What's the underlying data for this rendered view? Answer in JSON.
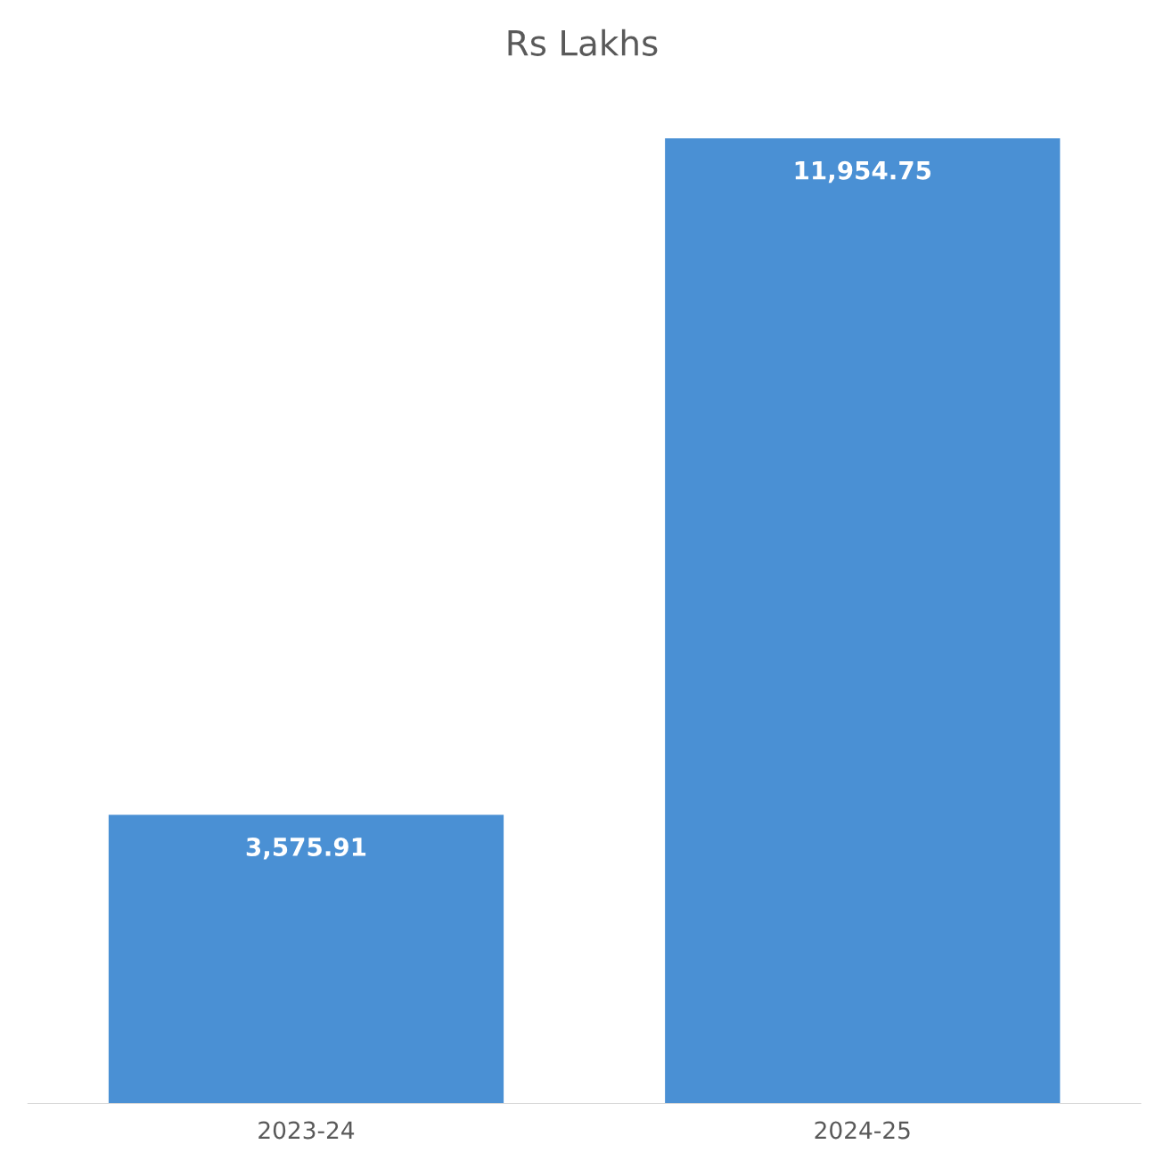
{
  "chart_data": {
    "type": "bar",
    "title": "Rs Lakhs",
    "categories": [
      "2023-24",
      "2024-25"
    ],
    "values": [
      3575.91,
      11954.75
    ],
    "value_labels": [
      "3,575.91",
      "11,954.75"
    ],
    "color": "#4a90d4",
    "tick_labels": "x",
    "grid": false,
    "legend": false
  }
}
